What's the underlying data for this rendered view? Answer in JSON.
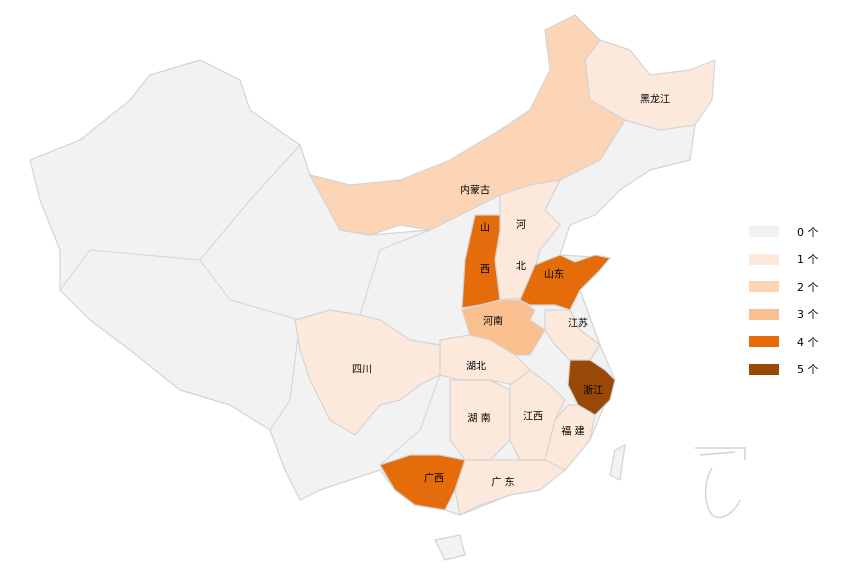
{
  "legend": {
    "items": [
      {
        "label": "0 个",
        "value": 0,
        "color": "#f2f2f2"
      },
      {
        "label": "1 个",
        "value": 1,
        "color": "#fde9dc"
      },
      {
        "label": "2 个",
        "value": 2,
        "color": "#fbd5b5"
      },
      {
        "label": "3 个",
        "value": 3,
        "color": "#f9bf8f"
      },
      {
        "label": "4 个",
        "value": 4,
        "color": "#e46c0a"
      },
      {
        "label": "5 个",
        "value": 5,
        "color": "#984807"
      }
    ]
  },
  "border_color": "#d4d4d4",
  "regions": [
    {
      "id": "heilongjiang",
      "label": "黑龙江",
      "value": 1
    },
    {
      "id": "neimenggu",
      "label": "内蒙古",
      "value": 2
    },
    {
      "id": "hebei",
      "label": "河 北",
      "value": 1
    },
    {
      "id": "shanxi",
      "label": "山 西",
      "value": 4
    },
    {
      "id": "shandong",
      "label": "山东",
      "value": 4
    },
    {
      "id": "henan",
      "label": "河南",
      "value": 3
    },
    {
      "id": "jiangsu",
      "label": "江苏",
      "value": 1
    },
    {
      "id": "zhejiang",
      "label": "浙江",
      "value": 5
    },
    {
      "id": "hubei",
      "label": "湖北",
      "value": 1
    },
    {
      "id": "hunan",
      "label": "湖 南",
      "value": 1
    },
    {
      "id": "jiangxi",
      "label": "江西",
      "value": 1
    },
    {
      "id": "fujian",
      "label": "福 建",
      "value": 1
    },
    {
      "id": "guangdong",
      "label": "广 东",
      "value": 1
    },
    {
      "id": "guangxi",
      "label": "广西",
      "value": 4
    },
    {
      "id": "sichuan",
      "label": "四川",
      "value": 1
    }
  ]
}
